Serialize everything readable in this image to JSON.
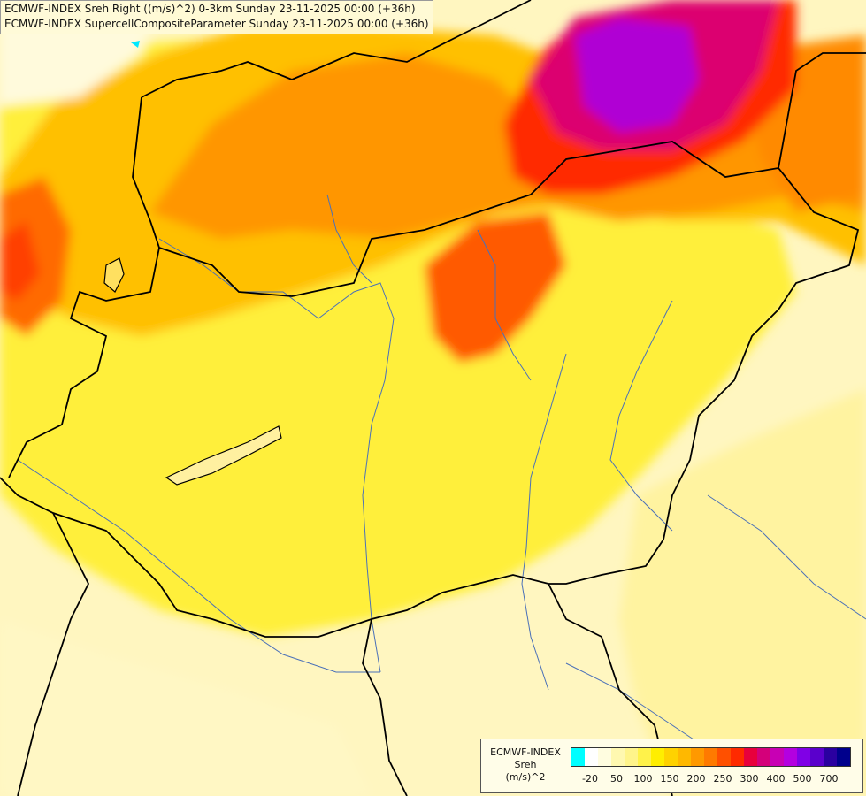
{
  "header": {
    "line1": "ECMWF-INDEX Sreh Right ((m/s)^2) 0-3km Sunday 23-11-2025 00:00 (+36h)",
    "line2": "ECMWF-INDEX SupercellCompositeParameter Sunday 23-11-2025 00:00 (+36h)"
  },
  "legend": {
    "title_line1": "ECMWF-INDEX",
    "title_line2": "Sreh",
    "title_line3": "(m/s)^2",
    "colors": [
      "#00ffff",
      "#ffffff",
      "#fffde0",
      "#fff8b0",
      "#fff48a",
      "#fff24a",
      "#ffee00",
      "#ffd200",
      "#ffb800",
      "#ff9900",
      "#ff7a00",
      "#ff5000",
      "#ff2a00",
      "#e8003c",
      "#d4007a",
      "#c800b4",
      "#b400e0",
      "#8000e6",
      "#5a00cc",
      "#2a00a0",
      "#00008c"
    ],
    "ticks": [
      "-20",
      "50",
      "100",
      "150",
      "200",
      "250",
      "300",
      "400",
      "500",
      "700"
    ]
  },
  "map_layers": {
    "fields": [
      "shaded Sreh (m/s)^2 contours",
      "national borders",
      "rivers"
    ],
    "palette": {
      "light": "#fff8c0",
      "yellow": "#ffee33",
      "gold": "#ffc400",
      "orange": "#ff9c00",
      "red_orange": "#ff5a00",
      "red": "#f01e00",
      "magenta": "#d8007c",
      "purple": "#b000d8",
      "border": "#000000",
      "river": "#4a70b8"
    }
  }
}
